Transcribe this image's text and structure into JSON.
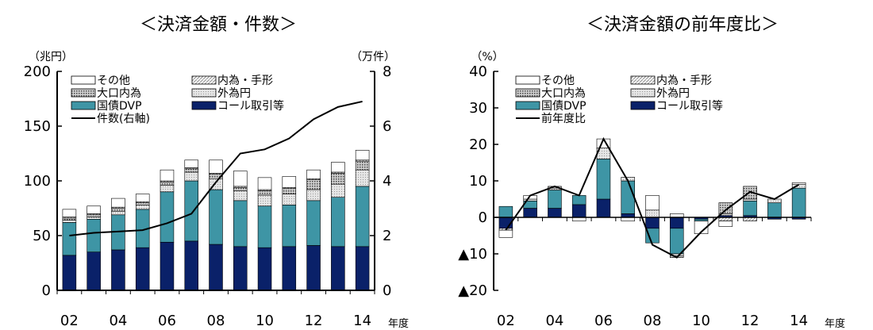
{
  "colors": {
    "call": "#0a2169",
    "jgb": "#3e95a5",
    "foreign_yen": "#e6e6e6",
    "large_domestic": "#6e6e6e",
    "domestic_bills": "#9a9a9a",
    "other": "#ffffff",
    "line": "#000000"
  },
  "chart_data": [
    {
      "type": "bar",
      "stacked": true,
      "title": "＜決済金額・件数＞",
      "y_unit": "（兆円）",
      "y2_unit": "（万件）",
      "x_unit": "年度",
      "ylim": [
        0,
        200
      ],
      "y2lim": [
        0,
        8
      ],
      "yticks": [
        0,
        50,
        100,
        150,
        200
      ],
      "y2ticks": [
        0,
        2,
        4,
        6,
        8
      ],
      "x": [
        "02",
        "03",
        "04",
        "05",
        "06",
        "07",
        "08",
        "09",
        "10",
        "11",
        "12",
        "13",
        "14"
      ],
      "xtick_labels": [
        "02",
        "04",
        "06",
        "08",
        "10",
        "12",
        "14"
      ],
      "grid": false,
      "legend_position": "top-left",
      "series": [
        {
          "name": "コール取引等",
          "key": "call",
          "values": [
            32,
            35,
            37,
            39,
            44,
            45,
            42,
            40,
            39,
            40,
            41,
            40,
            40
          ]
        },
        {
          "name": "国債DVP",
          "key": "jgb",
          "values": [
            30,
            30,
            32,
            35,
            46,
            55,
            50,
            42,
            38,
            38,
            41,
            45,
            55
          ]
        },
        {
          "name": "外為円",
          "key": "foreign_yen",
          "values": [
            2,
            2,
            3,
            4,
            6,
            8,
            10,
            9,
            10,
            10,
            10,
            12,
            15
          ]
        },
        {
          "name": "大口内為",
          "key": "large_domestic",
          "values": [
            2,
            2,
            3,
            2,
            3,
            3,
            4,
            3,
            4,
            5,
            9,
            10,
            8
          ]
        },
        {
          "name": "内為・手形",
          "key": "domestic_bills",
          "values": [
            1,
            1,
            1,
            1,
            1,
            1,
            1,
            1,
            1,
            1,
            1,
            1,
            1
          ]
        },
        {
          "name": "その他",
          "key": "other",
          "values": [
            7,
            7,
            8,
            7,
            10,
            7,
            12,
            14,
            11,
            10,
            8,
            9,
            9
          ]
        }
      ],
      "line_series": {
        "name": "件数(右軸)",
        "axis": "right",
        "values": [
          2.0,
          2.1,
          2.15,
          2.2,
          2.45,
          2.8,
          3.95,
          5.0,
          5.15,
          5.55,
          6.25,
          6.7,
          6.9
        ]
      },
      "legend_layout": [
        {
          "name": "その他",
          "key": "other"
        },
        {
          "name": "内為・手形",
          "key": "domestic_bills"
        },
        {
          "name": "大口内為",
          "key": "large_domestic"
        },
        {
          "name": "外為円",
          "key": "foreign_yen"
        },
        {
          "name": "国債DVP",
          "key": "jgb"
        },
        {
          "name": "コール取引等",
          "key": "call"
        },
        {
          "name": "件数(右軸)",
          "key": "line"
        }
      ]
    },
    {
      "type": "bar",
      "stacked": true,
      "title": "＜決済金額の前年度比＞",
      "y_unit": "（%）",
      "x_unit": "年度",
      "ylim": [
        -20,
        40
      ],
      "yticks": [
        -20,
        -10,
        0,
        10,
        20,
        30,
        40
      ],
      "ytick_labels": [
        "▲20",
        "▲10",
        "0",
        "10",
        "20",
        "30",
        "40"
      ],
      "x": [
        "02",
        "03",
        "04",
        "05",
        "06",
        "07",
        "08",
        "09",
        "10",
        "11",
        "12",
        "13",
        "14"
      ],
      "xtick_labels": [
        "02",
        "04",
        "06",
        "08",
        "10",
        "12",
        "14"
      ],
      "grid": false,
      "legend_position": "top-left",
      "series": [
        {
          "name": "コール取引等",
          "key": "call",
          "values": [
            -3,
            2.5,
            2.5,
            3.5,
            5,
            1,
            -3,
            -3,
            -0.5,
            0.5,
            0.5,
            -0.5,
            -0.5
          ]
        },
        {
          "name": "国債DVP",
          "key": "jgb",
          "values": [
            3,
            2,
            5,
            2.5,
            11,
            9,
            -4,
            -7,
            -0.5,
            0,
            4,
            4,
            8
          ]
        },
        {
          "name": "外為円",
          "key": "foreign_yen",
          "values": [
            0,
            0.5,
            0.5,
            0,
            3,
            1,
            2,
            -0.5,
            0,
            0.5,
            0.5,
            1,
            1
          ]
        },
        {
          "name": "大口内為",
          "key": "large_domestic",
          "values": [
            0,
            0,
            0.5,
            0,
            0,
            0,
            0,
            -0.5,
            0,
            3,
            3.5,
            0,
            0
          ]
        },
        {
          "name": "内為・手形",
          "key": "domestic_bills",
          "values": [
            -0.5,
            0,
            0,
            0,
            0,
            0,
            0,
            0,
            0,
            -1,
            -1,
            0,
            0
          ]
        },
        {
          "name": "その他",
          "key": "other",
          "values": [
            -2,
            1,
            0,
            -1,
            2.5,
            -1,
            4,
            1,
            -3.5,
            -1.5,
            0,
            0,
            0.5
          ]
        }
      ],
      "line_series": {
        "name": "前年度比",
        "values": [
          -3.5,
          6,
          8.5,
          6,
          21.5,
          10,
          -7.5,
          -11,
          -4,
          2,
          7,
          5,
          9
        ]
      },
      "legend_layout": [
        {
          "name": "その他",
          "key": "other"
        },
        {
          "name": "内為・手形",
          "key": "domestic_bills"
        },
        {
          "name": "大口内為",
          "key": "large_domestic"
        },
        {
          "name": "外為円",
          "key": "foreign_yen"
        },
        {
          "name": "国債DVP",
          "key": "jgb"
        },
        {
          "name": "コール取引等",
          "key": "call"
        },
        {
          "name": "前年度比",
          "key": "line"
        }
      ]
    }
  ]
}
